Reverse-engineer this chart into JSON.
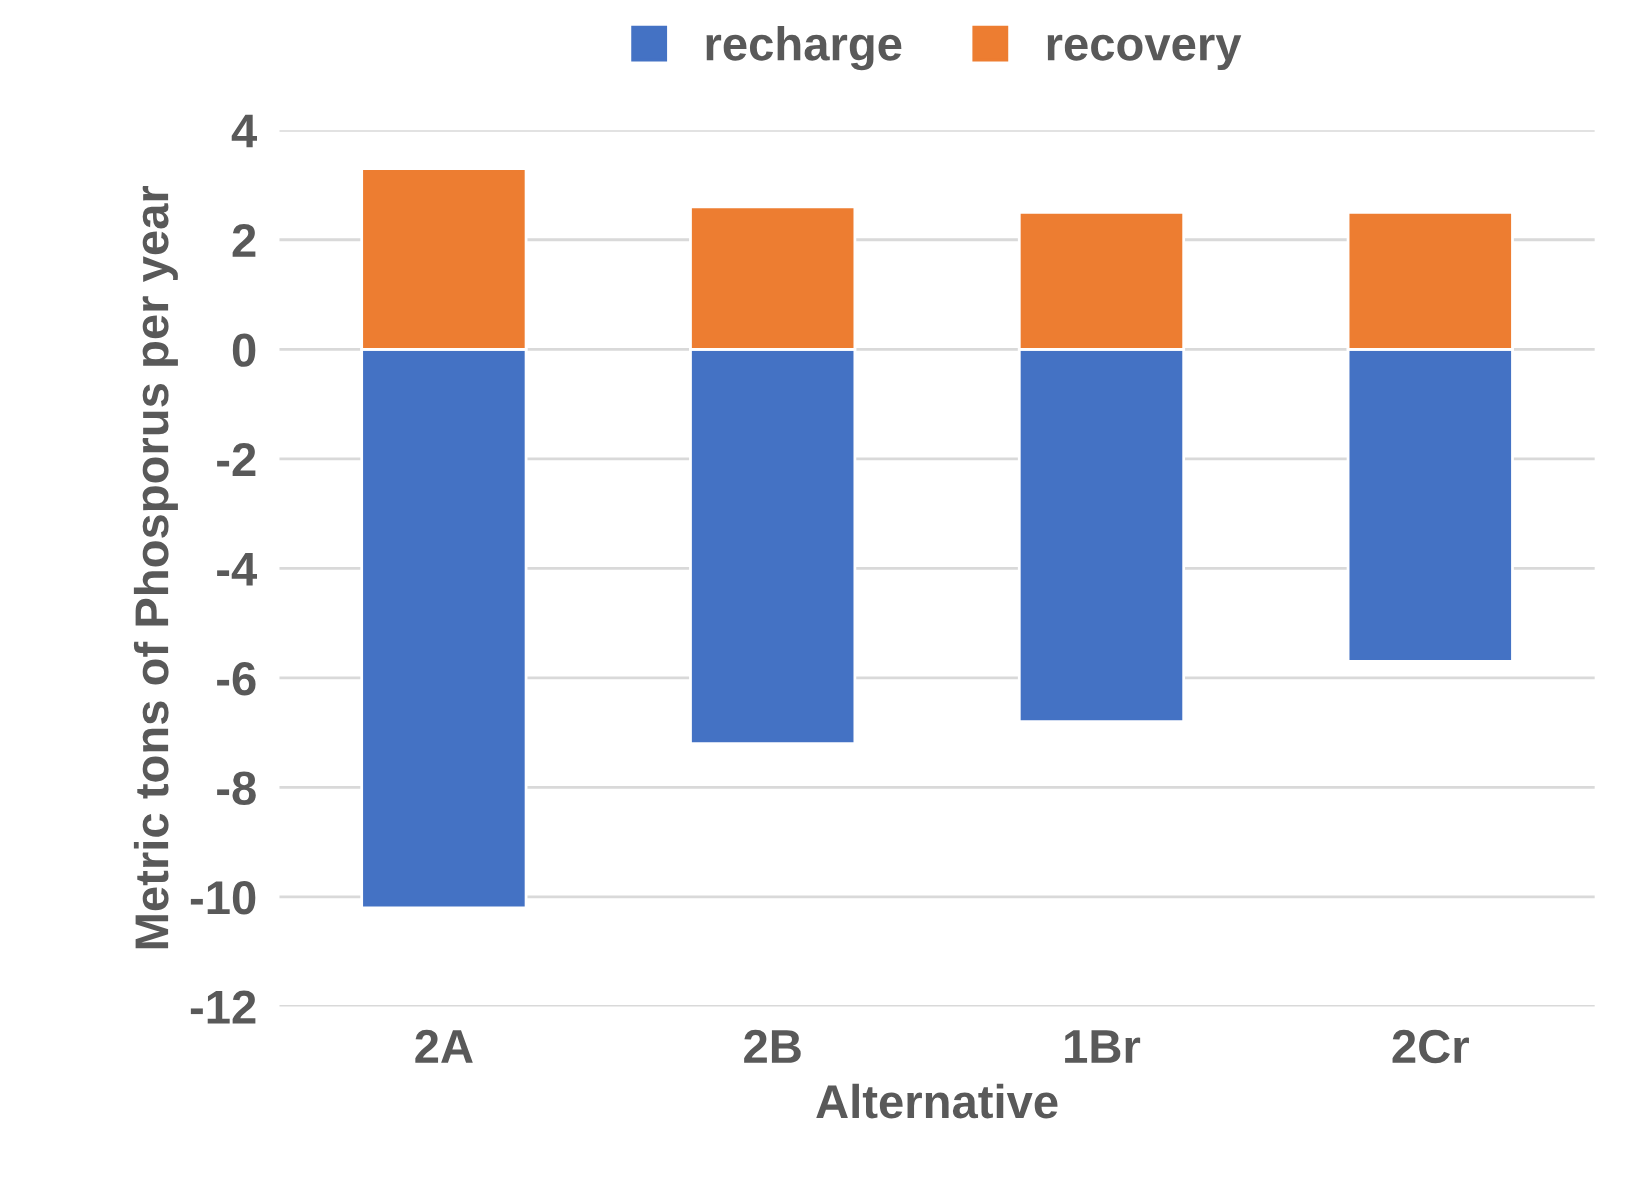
{
  "chart_data": {
    "type": "bar",
    "stacked": true,
    "xlabel": "Alternative",
    "ylabel": "Metric tons of Phosporus per year",
    "categories": [
      "2A",
      "2B",
      "1Br",
      "2Cr"
    ],
    "series": [
      {
        "name": "recharge",
        "color": "#4472c4",
        "values": [
          -10.2,
          -7.2,
          -6.8,
          -5.7
        ]
      },
      {
        "name": "recovery",
        "color": "#ed7d31",
        "values": [
          3.3,
          2.6,
          2.5,
          2.5
        ]
      }
    ],
    "ylim": [
      -12,
      4
    ],
    "yticks": [
      {
        "value": -12,
        "label": "-12"
      },
      {
        "value": -10,
        "label": "-10"
      },
      {
        "value": -8,
        "label": "-8"
      },
      {
        "value": -6,
        "label": "-6"
      },
      {
        "value": -4,
        "label": "-4"
      },
      {
        "value": -2,
        "label": "-2"
      },
      0,
      2,
      4
    ],
    "grid": "y",
    "legend": "top"
  }
}
